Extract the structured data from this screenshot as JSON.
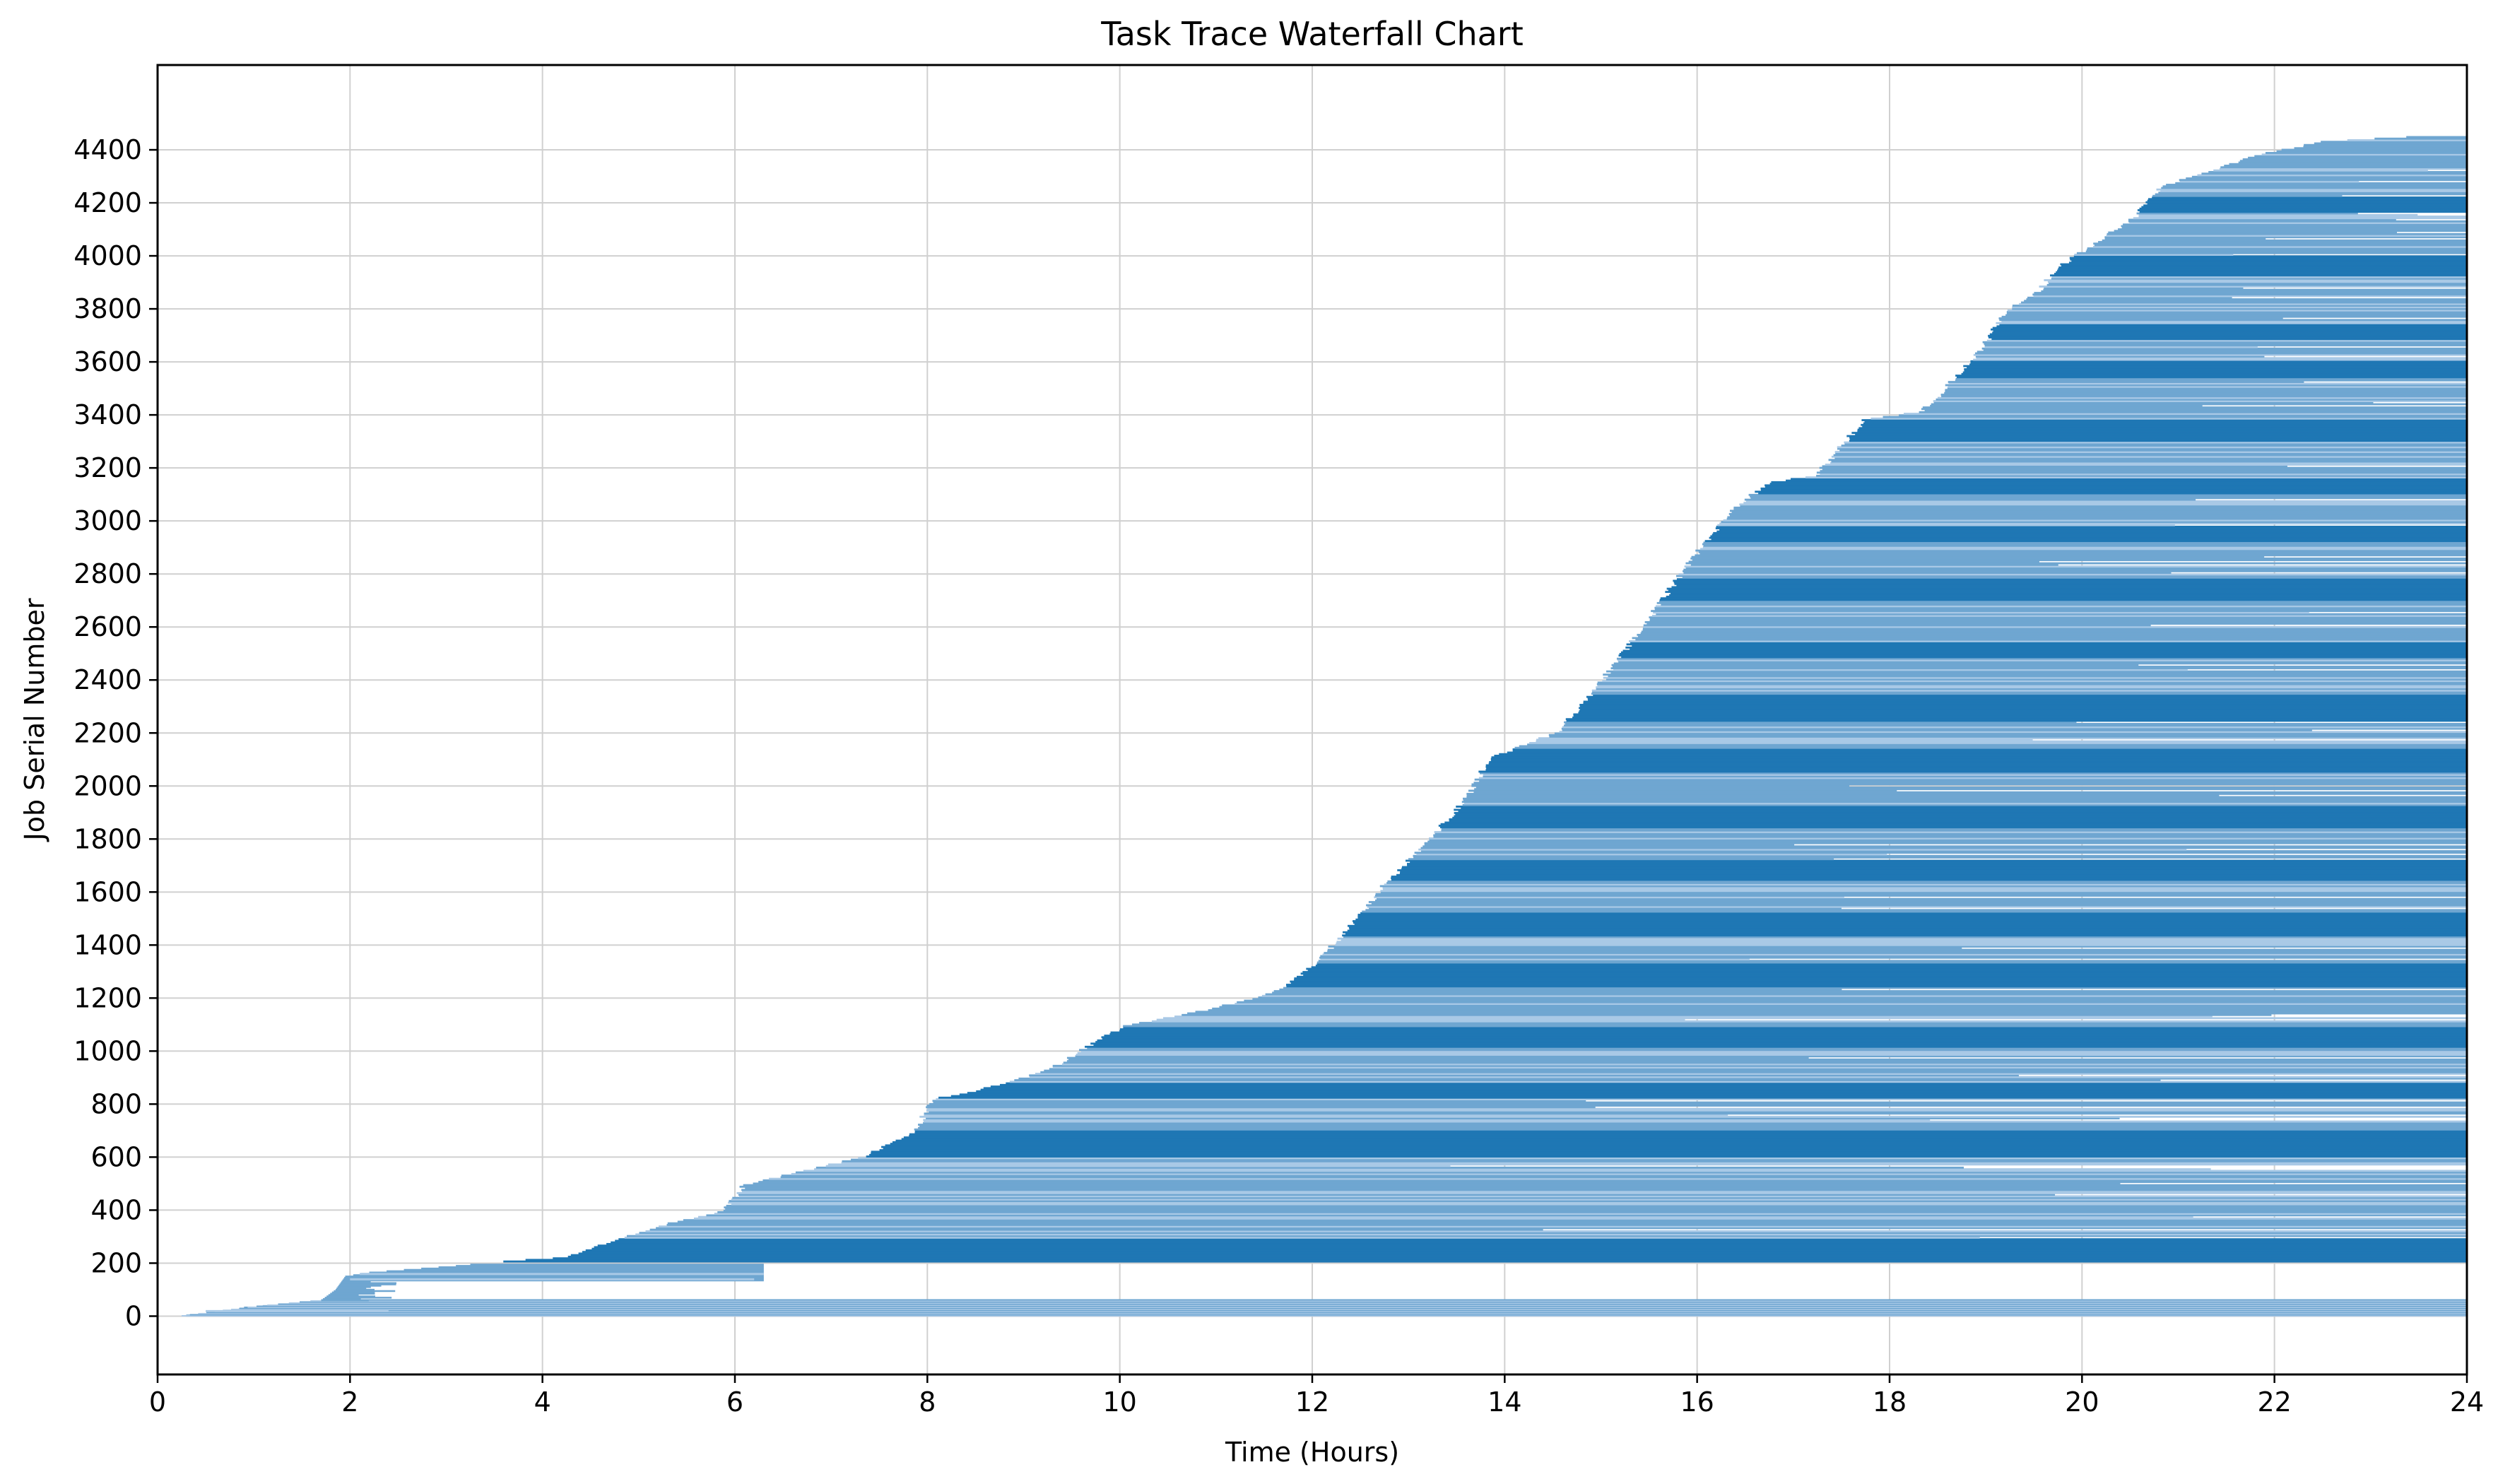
{
  "chart_data": {
    "type": "bar",
    "subtype": "waterfall-gantt",
    "title": "Task Trace Waterfall Chart",
    "xlabel": "Time (Hours)",
    "ylabel": "Job Serial Number",
    "xlim": [
      0,
      24
    ],
    "ylim": [
      -220,
      4720
    ],
    "xticks": [
      0,
      2,
      4,
      6,
      8,
      10,
      12,
      14,
      16,
      18,
      20,
      22,
      24
    ],
    "yticks": [
      0,
      200,
      400,
      600,
      800,
      1000,
      1200,
      1400,
      1600,
      1800,
      2000,
      2200,
      2400,
      2600,
      2800,
      3000,
      3200,
      3400,
      3600,
      3800,
      4000,
      4200,
      4400
    ],
    "grid": true,
    "legend": "none",
    "colors": {
      "dense": "#1f77b4",
      "light": "#6fa6d1",
      "pale": "#a9c9e6"
    },
    "job_count": 4450,
    "start_curve": [
      [
        0.25,
        0
      ],
      [
        1.0,
        35
      ],
      [
        1.7,
        60
      ],
      [
        1.85,
        100
      ],
      [
        1.95,
        150
      ],
      [
        2.2,
        165
      ],
      [
        3.1,
        190
      ],
      [
        3.4,
        200
      ],
      [
        4.2,
        220
      ],
      [
        5.2,
        340
      ],
      [
        5.8,
        390
      ],
      [
        5.95,
        440
      ],
      [
        6.05,
        490
      ],
      [
        7.3,
        600
      ],
      [
        7.6,
        650
      ],
      [
        7.85,
        700
      ],
      [
        8.0,
        815
      ],
      [
        8.5,
        850
      ],
      [
        9.0,
        900
      ],
      [
        9.4,
        960
      ],
      [
        9.6,
        1010
      ],
      [
        10.0,
        1090
      ],
      [
        10.7,
        1140
      ],
      [
        11.4,
        1200
      ],
      [
        11.7,
        1240
      ],
      [
        11.9,
        1300
      ],
      [
        12.3,
        1440
      ],
      [
        12.7,
        1620
      ],
      [
        13.2,
        1800
      ],
      [
        13.6,
        1970
      ],
      [
        13.8,
        2100
      ],
      [
        14.5,
        2200
      ],
      [
        14.8,
        2320
      ],
      [
        15.2,
        2500
      ],
      [
        15.6,
        2700
      ],
      [
        16.0,
        2900
      ],
      [
        16.4,
        3060
      ],
      [
        16.7,
        3140
      ],
      [
        17.2,
        3170
      ],
      [
        17.7,
        3380
      ],
      [
        18.3,
        3410
      ],
      [
        18.6,
        3520
      ],
      [
        18.9,
        3640
      ],
      [
        19.2,
        3800
      ],
      [
        19.5,
        3860
      ],
      [
        19.7,
        3950
      ],
      [
        19.9,
        4000
      ],
      [
        20.5,
        4140
      ],
      [
        20.8,
        4260
      ],
      [
        21.3,
        4320
      ],
      [
        21.8,
        4380
      ],
      [
        22.5,
        4430
      ],
      [
        24.0,
        4460
      ]
    ],
    "end_value": 24,
    "dense_bands": [
      [
        200,
        290
      ],
      [
        600,
        700
      ],
      [
        820,
        880
      ],
      [
        1010,
        1090
      ],
      [
        1240,
        1330
      ],
      [
        1430,
        1520
      ],
      [
        1640,
        1720
      ],
      [
        1840,
        1920
      ],
      [
        2050,
        2140
      ],
      [
        2240,
        2340
      ],
      [
        2480,
        2540
      ],
      [
        2700,
        2780
      ],
      [
        2920,
        2980
      ],
      [
        3100,
        3160
      ],
      [
        3300,
        3380
      ],
      [
        3540,
        3600
      ],
      [
        3680,
        3740
      ],
      [
        3920,
        4000
      ],
      [
        4160,
        4220
      ]
    ],
    "early_short_bars": [
      {
        "job": 160,
        "start": 2.1,
        "end": 6.3
      },
      {
        "job": 140,
        "start": 2.0,
        "end": 6.2
      },
      {
        "job": 20,
        "start": 0.5,
        "end": 2.4
      }
    ]
  }
}
